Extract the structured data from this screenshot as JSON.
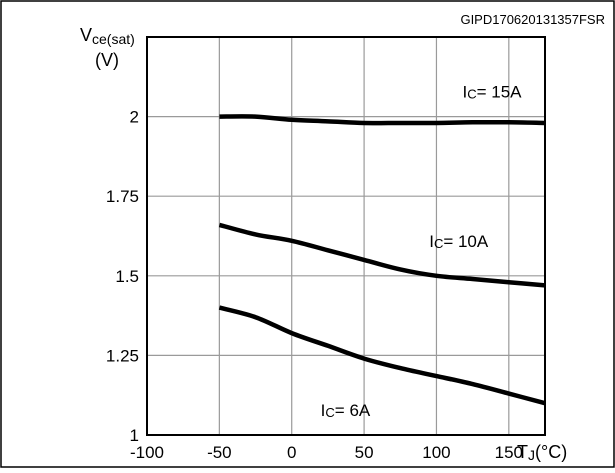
{
  "figure_id": "GIPD170620131357FSR",
  "chart_data": {
    "type": "line",
    "ylabel_main": "V",
    "ylabel_sub": "ce(sat)",
    "ylabel_unit": "(V)",
    "xlabel_main": "T",
    "xlabel_sub": "J",
    "xlabel_unit": "(°C)",
    "xlim": [
      -100,
      175
    ],
    "ylim": [
      1,
      2.25
    ],
    "x_ticks": [
      -100,
      -50,
      0,
      50,
      100,
      150
    ],
    "x_tick_labels": [
      "-100",
      "-50",
      "0",
      "50",
      "100",
      "150"
    ],
    "y_ticks": [
      1,
      1.25,
      1.5,
      1.75,
      2
    ],
    "y_tick_labels": [
      "1",
      "1.25",
      "1.5",
      "1.75",
      "2"
    ],
    "grid": true,
    "series": [
      {
        "name": "Ic= 15A",
        "label_prefix": "I",
        "label_sub": "C",
        "label_value": "= 15A",
        "label_at": [
          118,
          2.06
        ],
        "x": [
          -50,
          -25,
          0,
          25,
          50,
          75,
          100,
          125,
          150,
          175
        ],
        "y": [
          2.0,
          2.0,
          1.99,
          1.985,
          1.98,
          1.98,
          1.98,
          1.982,
          1.982,
          1.98
        ]
      },
      {
        "name": "Ic= 10A",
        "label_prefix": "I",
        "label_sub": "C",
        "label_value": "= 10A",
        "label_at": [
          95,
          1.59
        ],
        "x": [
          -50,
          -25,
          0,
          25,
          50,
          75,
          100,
          125,
          150,
          175
        ],
        "y": [
          1.66,
          1.63,
          1.61,
          1.58,
          1.55,
          1.52,
          1.5,
          1.49,
          1.48,
          1.47
        ]
      },
      {
        "name": "Ic= 6A",
        "label_prefix": "I",
        "label_sub": "C",
        "label_value": "= 6A",
        "label_at": [
          20,
          1.06
        ],
        "x": [
          -50,
          -25,
          0,
          25,
          50,
          75,
          100,
          125,
          150,
          175
        ],
        "y": [
          1.4,
          1.37,
          1.32,
          1.28,
          1.24,
          1.21,
          1.185,
          1.16,
          1.13,
          1.1
        ]
      }
    ]
  }
}
